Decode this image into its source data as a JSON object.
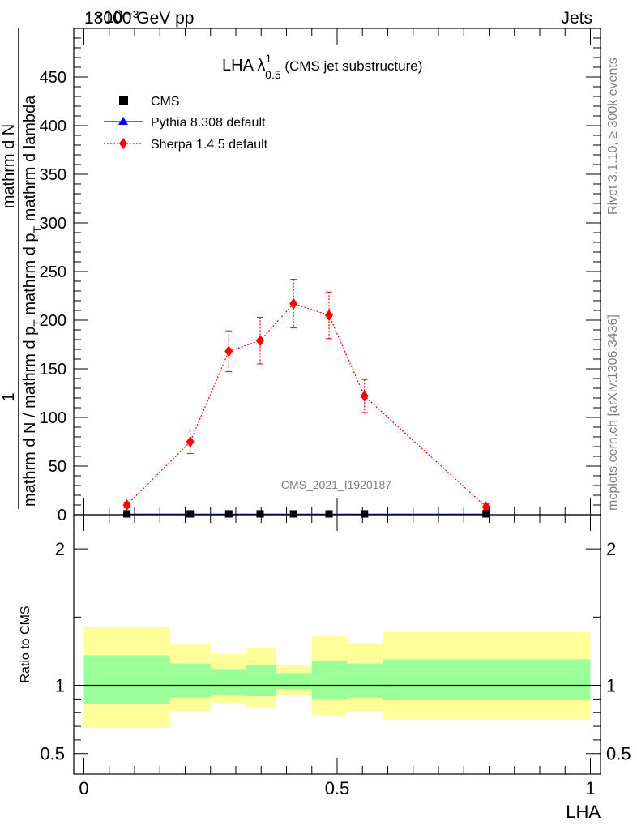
{
  "header": {
    "left": "13000 GeV pp",
    "right": "Jets",
    "exponent": "×10⁻³"
  },
  "side_labels": {
    "rivet": "Rivet 3.1.10, ≥ 300k events",
    "mcplots": "mcplots.cern.ch [arXiv:1306.3436]"
  },
  "watermark": "CMS_2021_I1920187",
  "title": {
    "main": "LHA λ",
    "sup": "1",
    "sub": "0.5",
    "suffix": " (CMS jet substructure)"
  },
  "y_label": {
    "numerator_one": "1",
    "numerator_dN": "mathrm d N",
    "denominator_a": "mathrm d N / mathrm d p",
    "sub_T": "T",
    "denominator_b": " mathrm d p",
    "denominator_c": " mathrm d lambda"
  },
  "ratio_ylabel": "Ratio to CMS",
  "x_label": "LHA",
  "legend": [
    {
      "label": "CMS",
      "color": "#000000",
      "marker": "square"
    },
    {
      "label": "Pythia 8.308 default",
      "color": "#0000ff",
      "marker": "triangle"
    },
    {
      "label": "Sherpa 1.4.5 default",
      "color": "#ff0000",
      "marker": "diamond"
    }
  ],
  "chart_data": {
    "type": "line",
    "title": "LHA λ^1_0.5 (CMS jet substructure)",
    "xlabel": "LHA",
    "ylabel": "1/(mathrm d N / mathrm d p_T mathrm d p_T mathrm d lambda) · mathrm d N",
    "xlim": [
      -0.02,
      1.02
    ],
    "ylim": [
      0,
      500
    ],
    "y_multiplier": "×10⁻³",
    "grid": false,
    "legend_position": "top-left",
    "x_ticks": [
      0,
      0.5,
      1
    ],
    "x_tick_labels": [
      "0",
      "0.5",
      "1"
    ],
    "y_ticks": [
      0,
      50,
      100,
      150,
      200,
      250,
      300,
      350,
      400,
      450
    ],
    "y_tick_labels": [
      "0",
      "50",
      "100",
      "150",
      "200",
      "250",
      "300",
      "350",
      "400",
      "450"
    ],
    "series": [
      {
        "name": "CMS",
        "color": "#000000",
        "x": [
          0.085,
          0.21,
          0.286,
          0.348,
          0.414,
          0.484,
          0.554,
          0.794
        ],
        "y": [
          0.9,
          0.9,
          0.9,
          0.9,
          0.9,
          0.9,
          0.9,
          0.9
        ]
      },
      {
        "name": "Pythia 8.308 default",
        "color": "#0000ff",
        "x": [
          0.085,
          0.21,
          0.286,
          0.348,
          0.414,
          0.484,
          0.554,
          0.794
        ],
        "y": [
          0.5,
          0.5,
          0.5,
          0.5,
          0.5,
          0.5,
          0.5,
          0.5
        ]
      },
      {
        "name": "Sherpa 1.4.5 default",
        "color": "#ff0000",
        "x": [
          0.085,
          0.21,
          0.286,
          0.348,
          0.414,
          0.484,
          0.554,
          0.794
        ],
        "y": [
          10,
          75,
          168,
          179,
          217,
          205,
          122,
          8
        ],
        "yerr": [
          3,
          12,
          21,
          24,
          25,
          24,
          17,
          3
        ]
      }
    ],
    "ratio": {
      "ylabel": "Ratio to CMS",
      "ylim": [
        0.35,
        2.25
      ],
      "y_ticks": [
        0.5,
        1,
        2
      ],
      "y_tick_labels": [
        "0.5",
        "1",
        "2"
      ],
      "bands": [
        {
          "x0": 0.0,
          "x1": 0.17,
          "inner": [
            0.86,
            1.22
          ],
          "outer": [
            0.69,
            1.43
          ]
        },
        {
          "x0": 0.17,
          "x1": 0.25,
          "inner": [
            0.91,
            1.16
          ],
          "outer": [
            0.81,
            1.3
          ]
        },
        {
          "x0": 0.25,
          "x1": 0.32,
          "inner": [
            0.93,
            1.12
          ],
          "outer": [
            0.87,
            1.23
          ]
        },
        {
          "x0": 0.32,
          "x1": 0.38,
          "inner": [
            0.92,
            1.15
          ],
          "outer": [
            0.84,
            1.27
          ]
        },
        {
          "x0": 0.38,
          "x1": 0.45,
          "inner": [
            0.97,
            1.09
          ],
          "outer": [
            0.93,
            1.15
          ]
        },
        {
          "x0": 0.45,
          "x1": 0.52,
          "inner": [
            0.9,
            1.18
          ],
          "outer": [
            0.78,
            1.36
          ]
        },
        {
          "x0": 0.52,
          "x1": 0.59,
          "inner": [
            0.91,
            1.16
          ],
          "outer": [
            0.81,
            1.31
          ]
        },
        {
          "x0": 0.59,
          "x1": 1.0,
          "inner": [
            0.89,
            1.19
          ],
          "outer": [
            0.75,
            1.39
          ]
        }
      ]
    }
  }
}
